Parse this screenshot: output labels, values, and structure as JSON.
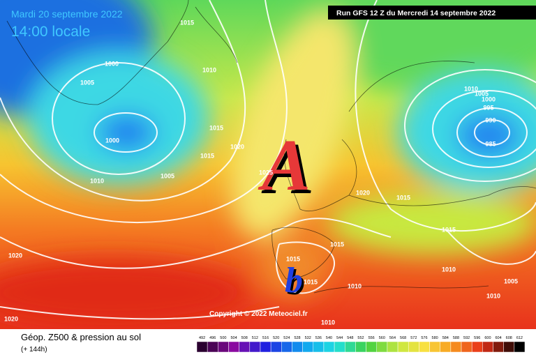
{
  "header": {
    "date": "Mardi 20 septembre 2022",
    "time": "14:00 locale",
    "run": "Run GFS 12 Z du Mercredi 14 septembre 2022"
  },
  "map": {
    "high_label": "A",
    "low_label": "b",
    "copyright": "Copyright © 2022 Meteociel.fr",
    "isobar_labels": [
      1015,
      1010,
      1000,
      1005,
      1000,
      1015,
      1020,
      1015,
      1005,
      1010,
      1025,
      1020,
      1015,
      1010,
      1005,
      1000,
      995,
      990,
      985,
      1015,
      1015,
      1015,
      1015,
      1010,
      1010,
      1005,
      1010,
      1020,
      1020,
      1010
    ]
  },
  "footer": {
    "title": "Géop. Z500 & pression au sol",
    "lead": "(+ 144h)",
    "scale": [
      492,
      496,
      500,
      504,
      508,
      512,
      516,
      520,
      524,
      528,
      532,
      536,
      540,
      544,
      548,
      552,
      556,
      560,
      564,
      568,
      572,
      576,
      580,
      584,
      588,
      592,
      596,
      600,
      604,
      608,
      612
    ]
  }
}
